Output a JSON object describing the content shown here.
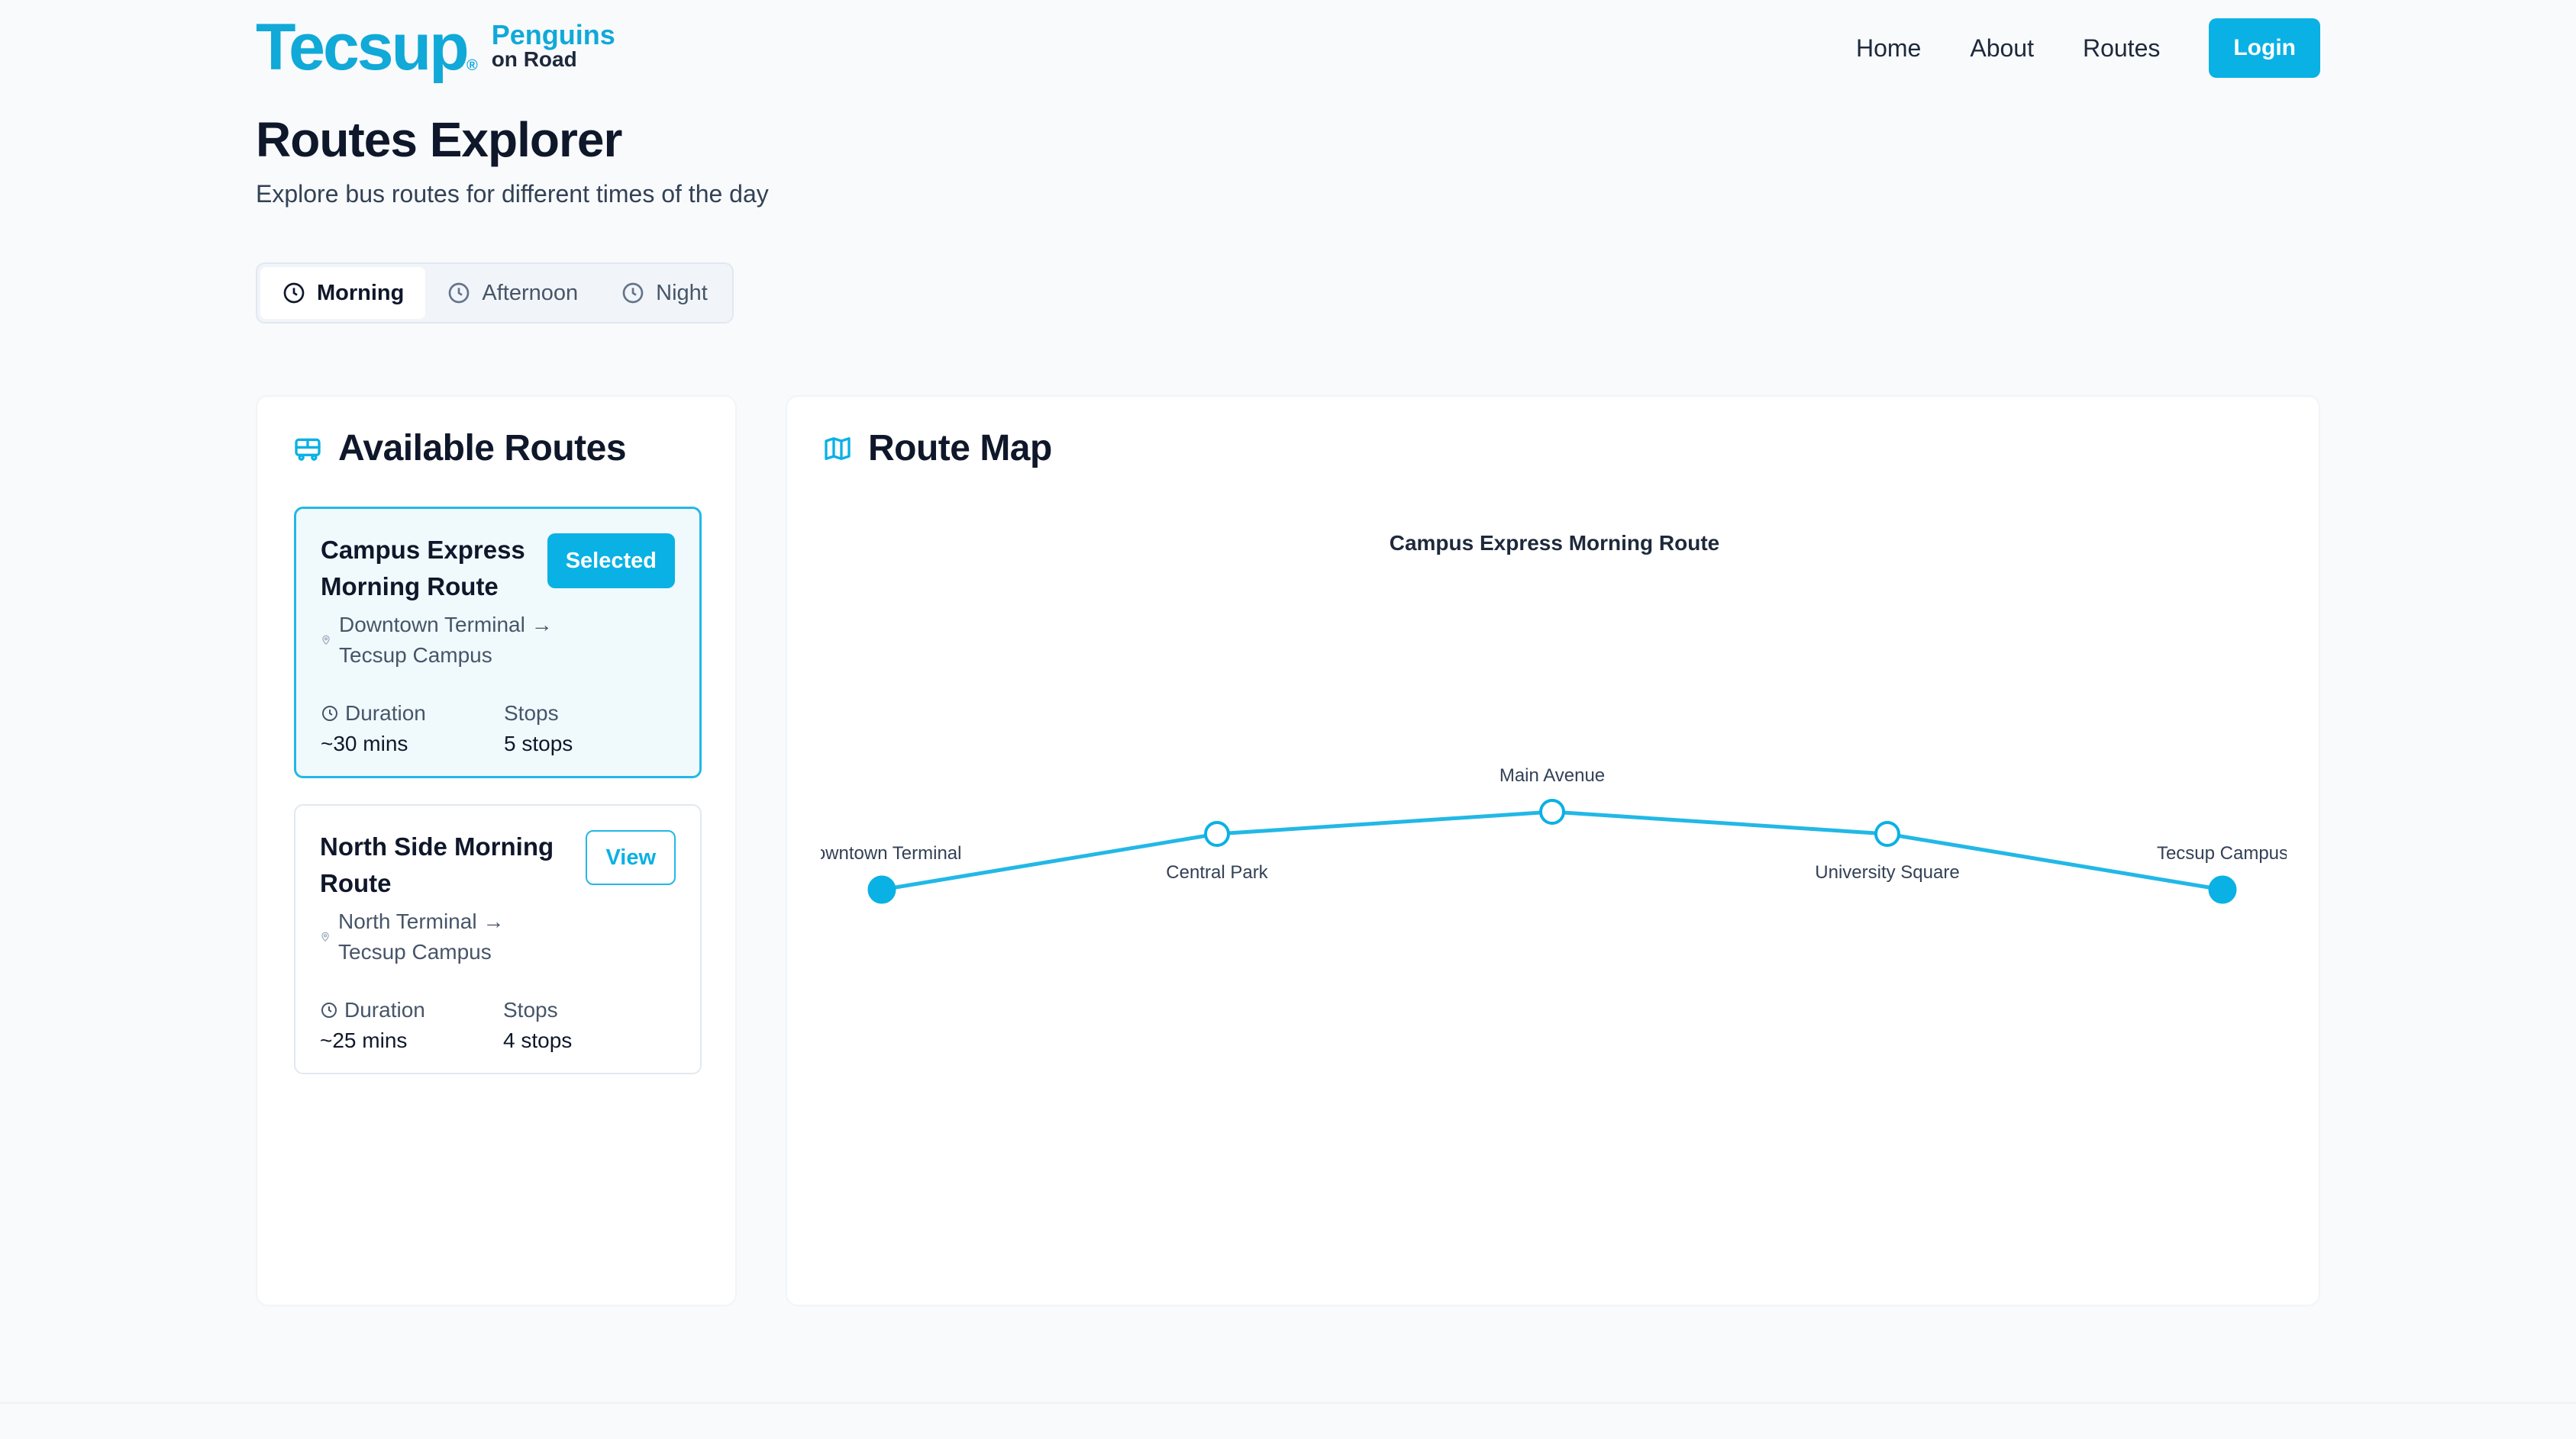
{
  "brand": {
    "logo_main": "Tecsup",
    "logo_reg": "®",
    "logo_line1": "Penguins",
    "logo_line2": "on Road",
    "accent_color": "#0ab1e4"
  },
  "nav": {
    "home": "Home",
    "about": "About",
    "routes": "Routes",
    "login": "Login"
  },
  "page": {
    "title": "Routes Explorer",
    "subtitle": "Explore bus routes for different times of the day"
  },
  "time_tabs": [
    {
      "label": "Morning",
      "active": true,
      "icon": "clock-icon"
    },
    {
      "label": "Afternoon",
      "active": false,
      "icon": "clock-icon"
    },
    {
      "label": "Night",
      "active": false,
      "icon": "clock-icon"
    }
  ],
  "available_routes": {
    "title": "Available Routes",
    "icon": "bus-icon",
    "routes": [
      {
        "name": "Campus Express Morning Route",
        "button": "Selected",
        "path": "Downtown Terminal → Tecsup Campus",
        "duration_label": "Duration",
        "duration": "~30 mins",
        "stops_label": "Stops",
        "stops": "5 stops",
        "selected": true
      },
      {
        "name": "North Side Morning Route",
        "button": "View",
        "path": "North Terminal → Tecsup Campus",
        "duration_label": "Duration",
        "duration": "~25 mins",
        "stops_label": "Stops",
        "stops": "4 stops",
        "selected": false
      }
    ]
  },
  "route_map": {
    "title": "Route Map",
    "icon": "map-icon",
    "chart_title": "Campus Express Morning Route",
    "stops": [
      {
        "name": "Downtown Terminal",
        "type": "terminal"
      },
      {
        "name": "Central Park",
        "type": "stop"
      },
      {
        "name": "Main Avenue",
        "type": "stop"
      },
      {
        "name": "University Square",
        "type": "stop"
      },
      {
        "name": "Tecsup Campus",
        "type": "terminal"
      }
    ]
  }
}
